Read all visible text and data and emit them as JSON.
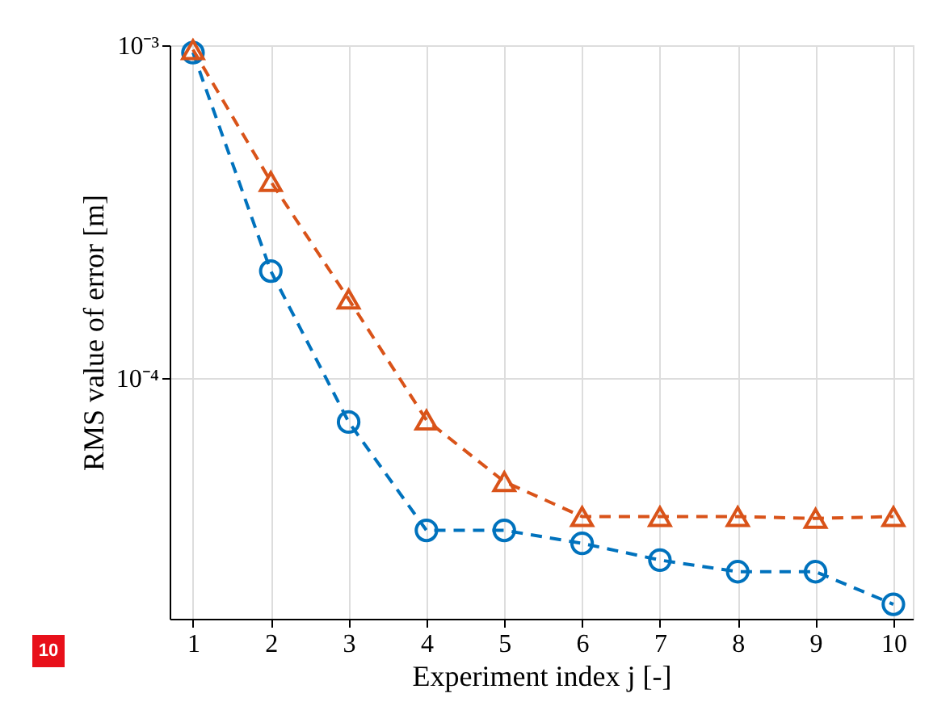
{
  "chart_data": {
    "type": "line",
    "xlabel": "Experiment index j [-]",
    "ylabel": "RMS value of error [m]",
    "x": [
      1,
      2,
      3,
      4,
      5,
      6,
      7,
      8,
      9,
      10
    ],
    "series": [
      {
        "color": "#0072bd",
        "marker": "circle",
        "values": [
          0.00095,
          0.00021,
          7.4e-05,
          3.5e-05,
          3.5e-05,
          3.2e-05,
          2.85e-05,
          2.63e-05,
          2.63e-05,
          2.1e-05
        ]
      },
      {
        "color": "#d95319",
        "marker": "triangle",
        "values": [
          0.00097,
          0.00039,
          0.000173,
          7.5e-05,
          4.9e-05,
          3.85e-05,
          3.85e-05,
          3.85e-05,
          3.8e-05,
          3.85e-05
        ]
      }
    ],
    "line_style": "dashed",
    "log": "y",
    "grid": true,
    "xlim": [
      0.7,
      10.25
    ],
    "xticks": [
      1,
      2,
      3,
      4,
      5,
      6,
      7,
      8,
      9,
      10
    ],
    "ylim": [
      1.9e-05,
      0.001
    ],
    "yticks": [
      {
        "value": 0.0001,
        "label": "10⁻⁴"
      },
      {
        "value": 0.001,
        "label": "10⁻³"
      }
    ],
    "annotations": [
      "10"
    ]
  }
}
